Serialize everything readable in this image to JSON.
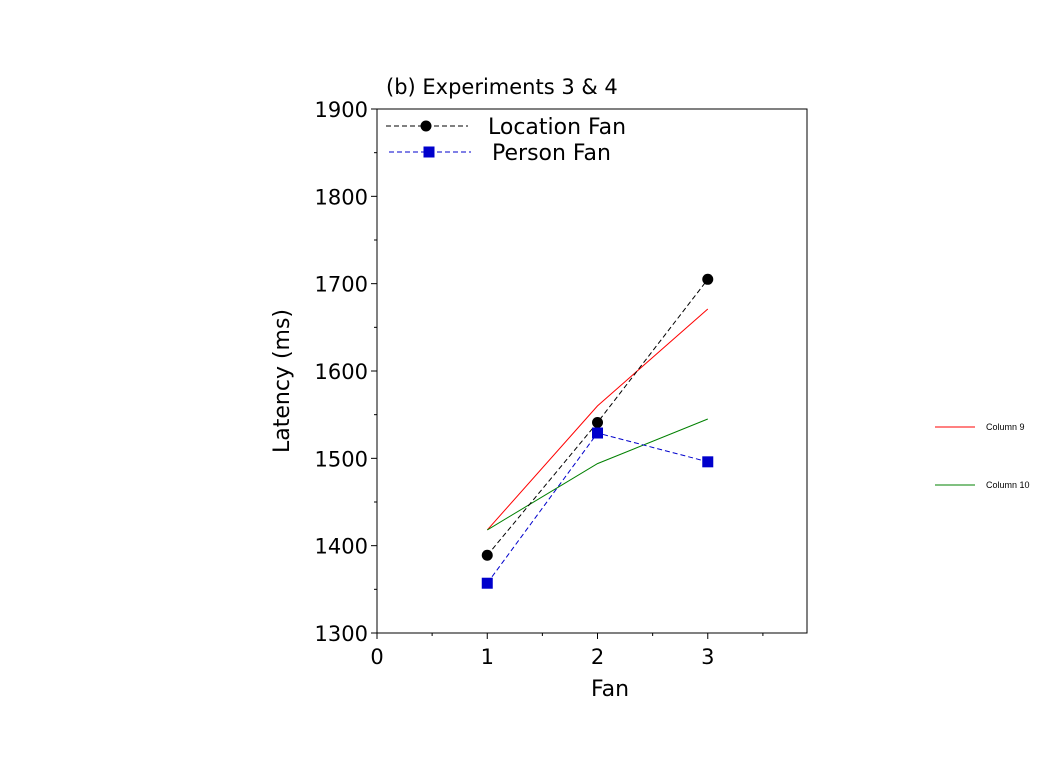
{
  "chart_data": {
    "type": "line",
    "title": "(b) Experiments 3 & 4",
    "xlabel": "Fan",
    "ylabel": "Latency (ms)",
    "xlim": [
      0,
      3.9
    ],
    "ylim": [
      1300,
      1900
    ],
    "xticks": [
      0,
      1,
      2,
      3
    ],
    "yticks": [
      1300,
      1400,
      1500,
      1600,
      1700,
      1800,
      1900
    ],
    "grid": false,
    "legend_position": "top-left",
    "series": [
      {
        "name": "Location Fan",
        "x": [
          1,
          2,
          3
        ],
        "y": [
          1389,
          1541,
          1705
        ],
        "color": "#000000",
        "marker": "circle",
        "dash": true
      },
      {
        "name": "Person Fan",
        "x": [
          1,
          2,
          3
        ],
        "y": [
          1357,
          1529,
          1496
        ],
        "color": "#0000cc",
        "marker": "square",
        "dash": true
      },
      {
        "name": "Column 9",
        "x": [
          1,
          2,
          3
        ],
        "y": [
          1418,
          1560,
          1671
        ],
        "color": "#ff0000",
        "marker": "none",
        "dash": false
      },
      {
        "name": "Column 10",
        "x": [
          1,
          2,
          3
        ],
        "y": [
          1418,
          1494,
          1545
        ],
        "color": "#008000",
        "marker": "none",
        "dash": false
      }
    ]
  }
}
